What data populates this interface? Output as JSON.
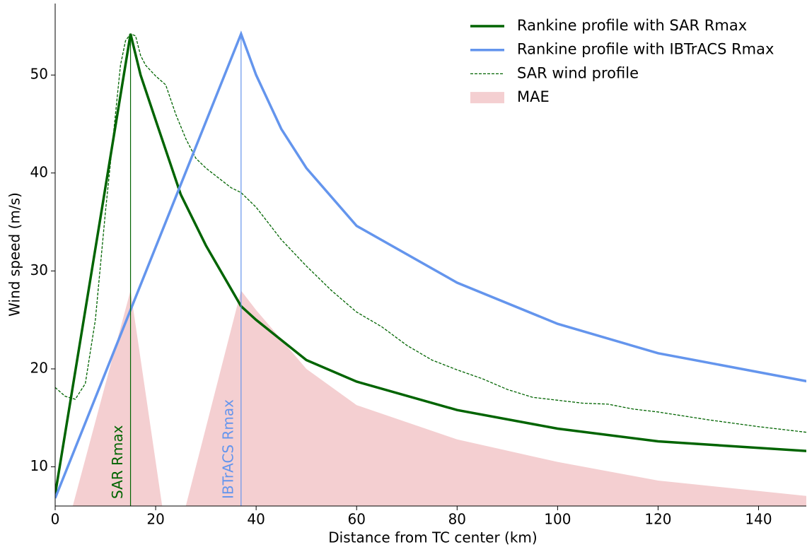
{
  "chart_data": {
    "type": "line",
    "x_label": "Distance from TC center (km)",
    "y_label": "Wind speed (m/s)",
    "xlim": [
      0,
      149.5
    ],
    "ylim": [
      6,
      57.3
    ],
    "xticks": [
      0,
      20,
      40,
      60,
      80,
      100,
      120,
      140
    ],
    "yticks": [
      10,
      20,
      30,
      40,
      50
    ],
    "legend": "upper right",
    "series": [
      {
        "name": "Rankine profile with SAR Rmax",
        "color": "#006400",
        "style": "solid",
        "x": [
          0,
          15,
          17,
          20,
          25,
          30,
          37,
          40,
          50,
          60,
          80,
          100,
          120,
          150
        ],
        "values": [
          7.2,
          54.2,
          50,
          45.4,
          37.8,
          32.6,
          26.4,
          25,
          20.9,
          18.7,
          15.8,
          13.9,
          12.6,
          11.6
        ]
      },
      {
        "name": "Rankine profile with IBTrACS Rmax",
        "color": "#6495ed",
        "style": "solid",
        "x": [
          0,
          37,
          40,
          45,
          50,
          60,
          80,
          100,
          120,
          150
        ],
        "values": [
          6.8,
          54.2,
          50,
          44.5,
          40.5,
          34.6,
          28.8,
          24.6,
          21.6,
          18.7
        ]
      },
      {
        "name": "SAR wind profile",
        "color": "#006400",
        "style": "dashed",
        "x": [
          0,
          2,
          4,
          6,
          8,
          10,
          12,
          13,
          14,
          15,
          16,
          17,
          18,
          20,
          22,
          24,
          26,
          28,
          30,
          35,
          37,
          40,
          45,
          50,
          55,
          60,
          65,
          70,
          75,
          80,
          85,
          90,
          95,
          100,
          105,
          110,
          115,
          120,
          130,
          140,
          150
        ],
        "values": [
          18.1,
          17.2,
          16.9,
          18.5,
          25,
          36,
          46,
          51,
          53.5,
          54.2,
          54,
          52,
          51,
          49.9,
          49,
          46,
          43.5,
          41.5,
          40.5,
          38.5,
          38,
          36.5,
          33.2,
          30.5,
          28,
          25.8,
          24.3,
          22.4,
          20.9,
          19.9,
          19,
          17.9,
          17.1,
          16.8,
          16.5,
          16.4,
          15.9,
          15.6,
          14.8,
          14.1,
          13.5
        ]
      },
      {
        "name": "MAE",
        "color": "#f4cfd1",
        "style": "fill",
        "x": [
          3.5,
          15,
          21.3,
          null,
          26,
          37,
          40,
          50,
          60,
          80,
          100,
          120,
          150
        ],
        "values": [
          6,
          28,
          6,
          null,
          6,
          28,
          26,
          20,
          16.3,
          12.8,
          10.5,
          8.6,
          7
        ]
      }
    ],
    "annotations": [
      {
        "text": "SAR Rmax",
        "x": 15,
        "ymax": 54.2,
        "color": "#006400"
      },
      {
        "text": "IBTrACS Rmax",
        "x": 37,
        "ymax": 54.2,
        "color": "#6495ed"
      }
    ]
  }
}
